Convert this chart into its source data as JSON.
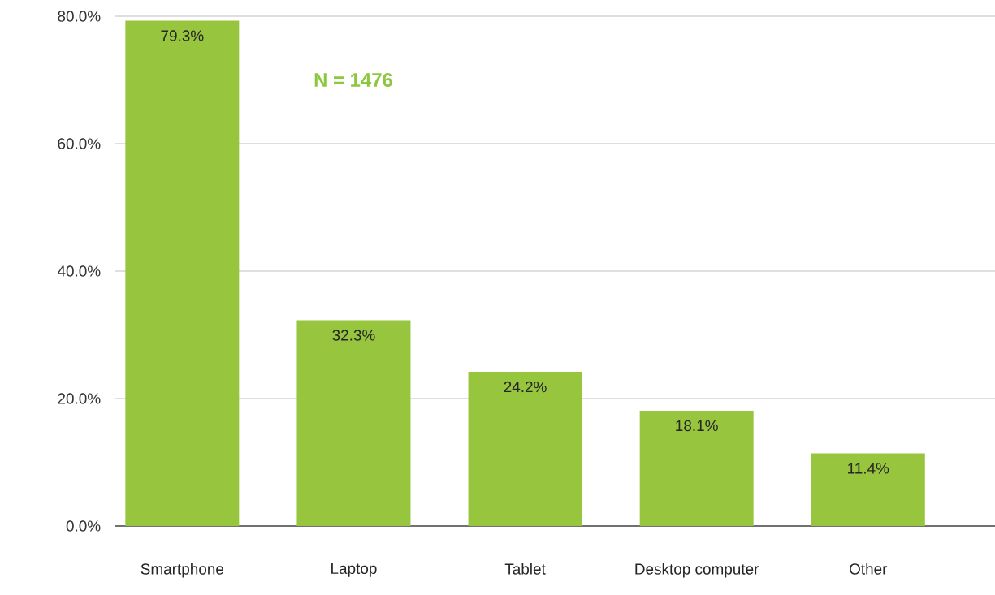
{
  "chart_data": {
    "type": "bar",
    "categories": [
      "Smartphone",
      "Laptop",
      "Tablet",
      "Desktop computer",
      "Other"
    ],
    "values": [
      79.3,
      32.3,
      24.2,
      18.1,
      11.4
    ],
    "value_labels": [
      "79.3%",
      "32.3%",
      "24.2%",
      "18.1%",
      "11.4%"
    ],
    "color": "#97c53e",
    "ylim": [
      0,
      80
    ],
    "yticks": [
      {
        "value": 0,
        "label": "0.0%"
      },
      {
        "value": 20,
        "label": "20.0%"
      },
      {
        "value": 40,
        "label": "40.0%"
      },
      {
        "value": 60,
        "label": "60.0%"
      },
      {
        "value": 80,
        "label": "80.0%"
      }
    ],
    "grid": "y",
    "annotations": [
      "N = 1476"
    ]
  }
}
